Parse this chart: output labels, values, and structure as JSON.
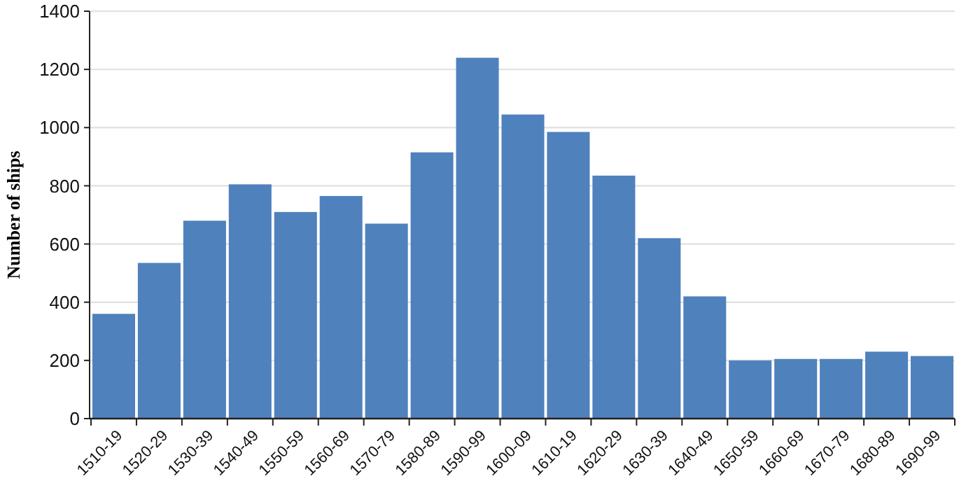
{
  "chart_data": {
    "type": "bar",
    "ylabel": "Number of ships",
    "categories": [
      "1510-19",
      "1520-29",
      "1530-39",
      "1540-49",
      "1550-59",
      "1560-69",
      "1570-79",
      "1580-89",
      "1590-99",
      "1600-09",
      "1610-19",
      "1620-29",
      "1630-39",
      "1640-49",
      "1650-59",
      "1660-69",
      "1670-79",
      "1680-89",
      "1690-99"
    ],
    "values": [
      360,
      535,
      680,
      805,
      710,
      765,
      670,
      915,
      1240,
      1045,
      985,
      835,
      620,
      420,
      200,
      205,
      205,
      230,
      215
    ],
    "color": "#4f81bd",
    "ylim": [
      0,
      1400
    ],
    "yticks": [
      0,
      200,
      400,
      600,
      800,
      1000,
      1200,
      1400
    ],
    "grid": "y"
  }
}
